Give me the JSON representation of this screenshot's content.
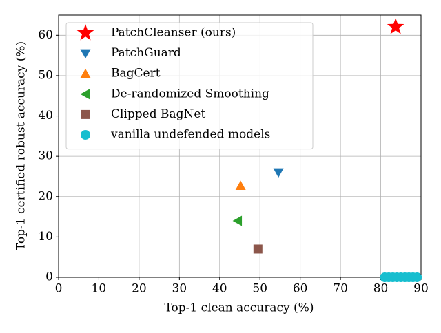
{
  "chart_data": {
    "type": "scatter",
    "xlabel": "Top-1 clean accuracy (%)",
    "ylabel": "Top-1 certified robust accuracy (%)",
    "xlim": [
      0,
      90
    ],
    "ylim": [
      0,
      65
    ],
    "xticks": [
      0,
      10,
      20,
      30,
      40,
      50,
      60,
      70,
      80,
      90
    ],
    "yticks": [
      0,
      10,
      20,
      30,
      40,
      50,
      60
    ],
    "grid": true,
    "legend": "upper left",
    "series": [
      {
        "name": "PatchCleanser (ours)",
        "color": "#ff0000",
        "marker": "star",
        "x": [
          83.7
        ],
        "y": [
          62.1
        ]
      },
      {
        "name": "PatchGuard",
        "color": "#1f77b4",
        "marker": "triangle-down",
        "x": [
          54.6
        ],
        "y": [
          26.0
        ]
      },
      {
        "name": "BagCert",
        "color": "#ff7f0e",
        "marker": "triangle-up",
        "x": [
          45.2
        ],
        "y": [
          22.7
        ]
      },
      {
        "name": "De-randomized Smoothing",
        "color": "#2ca02c",
        "marker": "triangle-left",
        "x": [
          44.5
        ],
        "y": [
          14.0
        ]
      },
      {
        "name": "Clipped BagNet",
        "color": "#8c564b",
        "marker": "square",
        "x": [
          49.5
        ],
        "y": [
          7.0
        ]
      },
      {
        "name": "vanilla undefended models",
        "color": "#17becf",
        "marker": "circle",
        "x": [
          81,
          82,
          83,
          84,
          85,
          86,
          87,
          88,
          89
        ],
        "y": [
          0,
          0,
          0,
          0,
          0,
          0,
          0,
          0,
          0
        ]
      }
    ]
  }
}
